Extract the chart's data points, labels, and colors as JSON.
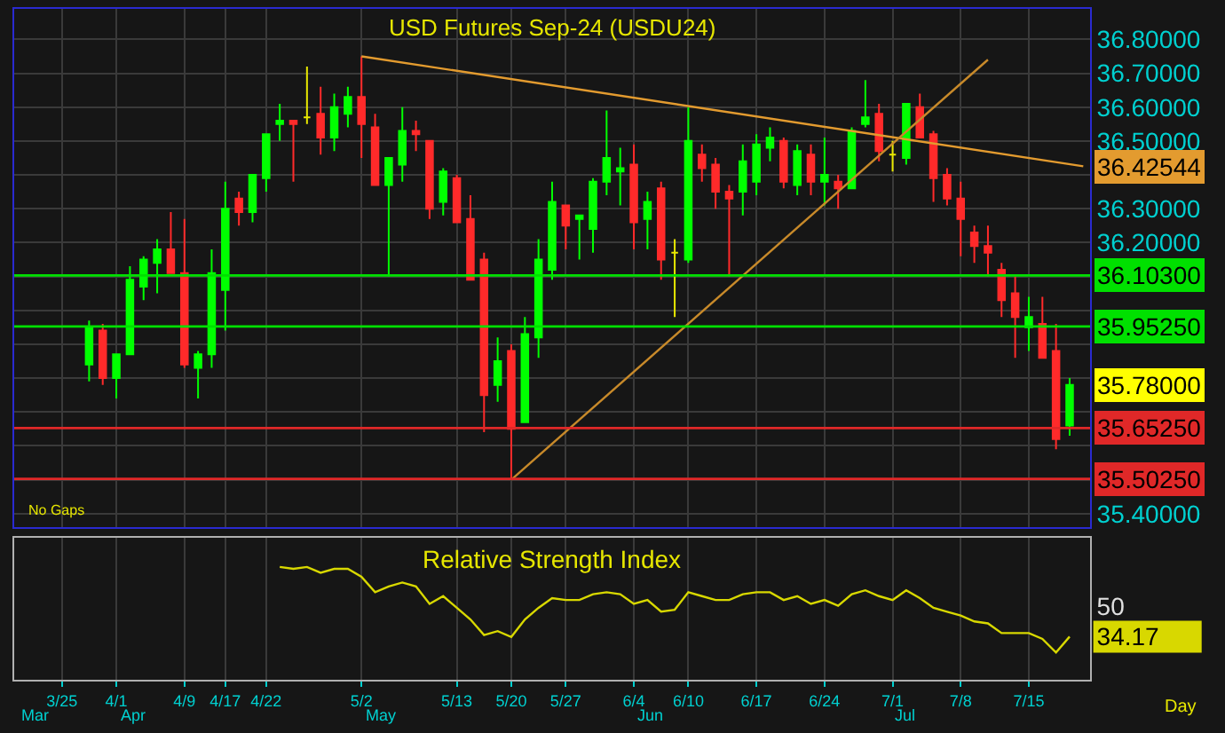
{
  "chart_data": [
    {
      "type": "candlestick",
      "title": "USD Futures Sep-24 (USDU24)",
      "categories": [
        null,
        null,
        null,
        null,
        null,
        null,
        null,
        null,
        null,
        null,
        null,
        null,
        null,
        null,
        null,
        null,
        null,
        null,
        null,
        null,
        null,
        null,
        null,
        null,
        null,
        null,
        null,
        null,
        null,
        null,
        null,
        null,
        null,
        null,
        null,
        null,
        null,
        null,
        null,
        null,
        null,
        null,
        null,
        null,
        null,
        null,
        null,
        null,
        null,
        null,
        null,
        null,
        null,
        null,
        null,
        null,
        null,
        null,
        null,
        null,
        null,
        null,
        null,
        null,
        null,
        null,
        null,
        null,
        null,
        null,
        null,
        null,
        null,
        null,
        null,
        null,
        null,
        null,
        null
      ],
      "ohlc": [
        null,
        null,
        null,
        null,
        null,
        [
          35.84,
          35.97,
          35.79,
          35.95
        ],
        [
          35.94,
          35.96,
          35.78,
          35.8
        ],
        [
          35.8,
          35.87,
          35.74,
          35.87
        ],
        [
          35.87,
          36.13,
          35.87,
          36.09
        ],
        [
          36.07,
          36.16,
          36.03,
          36.15
        ],
        [
          36.14,
          36.21,
          36.05,
          36.18
        ],
        [
          36.18,
          36.29,
          36.11,
          36.11
        ],
        [
          36.11,
          36.27,
          35.83,
          35.84
        ],
        [
          35.83,
          35.88,
          35.74,
          35.87
        ],
        [
          35.87,
          36.18,
          35.83,
          36.11
        ],
        [
          36.06,
          36.38,
          35.94,
          36.3
        ],
        [
          36.33,
          36.35,
          36.25,
          36.29
        ],
        [
          36.29,
          36.4,
          36.26,
          36.4
        ],
        [
          36.39,
          36.52,
          36.35,
          36.52
        ],
        [
          36.55,
          36.61,
          36.5,
          36.56
        ],
        [
          36.56,
          36.56,
          36.38,
          36.55
        ],
        [
          36.57,
          36.72,
          36.55,
          36.57
        ],
        [
          36.58,
          36.66,
          36.46,
          36.51
        ],
        [
          36.51,
          36.64,
          36.47,
          36.6
        ],
        [
          36.58,
          36.66,
          36.54,
          36.63
        ],
        [
          36.63,
          36.75,
          36.45,
          36.55
        ],
        [
          36.54,
          36.58,
          36.37,
          36.37
        ],
        [
          36.37,
          36.45,
          36.1,
          36.45
        ],
        [
          36.43,
          36.6,
          36.38,
          36.53
        ],
        [
          36.53,
          36.56,
          36.47,
          36.52
        ],
        [
          36.5,
          36.5,
          36.27,
          36.3
        ],
        [
          36.32,
          36.42,
          36.28,
          36.41
        ],
        [
          36.39,
          36.4,
          36.26,
          36.26
        ],
        [
          36.27,
          36.34,
          36.09,
          36.09
        ],
        [
          36.15,
          36.17,
          35.64,
          35.75
        ],
        [
          35.78,
          35.92,
          35.73,
          35.85
        ],
        [
          35.88,
          35.9,
          35.5,
          35.65
        ],
        [
          35.67,
          35.98,
          35.67,
          35.93
        ],
        [
          35.92,
          36.21,
          35.86,
          36.15
        ],
        [
          36.12,
          36.38,
          36.09,
          36.32
        ],
        [
          36.31,
          36.31,
          36.18,
          36.25
        ],
        [
          36.27,
          36.28,
          36.15,
          36.28
        ],
        [
          36.24,
          36.39,
          36.17,
          36.38
        ],
        [
          36.38,
          36.59,
          36.34,
          36.45
        ],
        [
          36.41,
          36.48,
          36.31,
          36.42
        ],
        [
          36.43,
          36.49,
          36.18,
          36.26
        ],
        [
          36.27,
          36.35,
          36.18,
          36.32
        ],
        [
          36.36,
          36.38,
          36.09,
          36.15
        ],
        [
          36.17,
          36.21,
          35.98,
          36.17
        ],
        [
          36.15,
          36.6,
          36.14,
          36.5
        ],
        [
          36.46,
          36.49,
          36.38,
          36.42
        ],
        [
          36.43,
          36.45,
          36.3,
          36.35
        ],
        [
          36.35,
          36.37,
          36.1,
          36.33
        ],
        [
          36.35,
          36.49,
          36.28,
          36.44
        ],
        [
          36.38,
          36.52,
          36.34,
          36.49
        ],
        [
          36.48,
          36.54,
          36.44,
          36.51
        ],
        [
          36.5,
          36.51,
          36.36,
          36.38
        ],
        [
          36.37,
          36.49,
          36.34,
          36.47
        ],
        [
          36.46,
          36.49,
          36.34,
          36.38
        ],
        [
          36.38,
          36.51,
          36.31,
          36.4
        ],
        [
          36.38,
          36.4,
          36.3,
          36.36
        ],
        [
          36.36,
          36.54,
          36.36,
          36.53
        ],
        [
          36.55,
          36.68,
          36.54,
          36.57
        ],
        [
          36.58,
          36.61,
          36.44,
          36.47
        ],
        [
          36.46,
          36.5,
          36.41,
          36.46
        ],
        [
          36.45,
          36.61,
          36.43,
          36.61
        ],
        [
          36.6,
          36.64,
          36.51,
          36.51
        ],
        [
          36.52,
          36.53,
          36.32,
          36.39
        ],
        [
          36.4,
          36.42,
          36.31,
          36.33
        ],
        [
          36.33,
          36.38,
          36.16,
          36.27
        ],
        [
          36.23,
          36.25,
          36.14,
          36.19
        ],
        [
          36.19,
          36.25,
          36.1,
          36.17
        ],
        [
          36.12,
          36.14,
          35.98,
          36.03
        ],
        [
          36.05,
          36.1,
          35.86,
          35.98
        ],
        [
          35.95,
          36.04,
          35.88,
          35.98
        ],
        [
          35.96,
          36.04,
          35.86,
          35.86
        ],
        [
          35.88,
          35.96,
          35.59,
          35.62
        ],
        [
          35.66,
          35.8,
          35.63,
          35.78
        ],
        null
      ],
      "colors": [
        null,
        null,
        null,
        null,
        null,
        "#00ff00",
        "#ff2a2a",
        "#00ff00",
        "#00ff00",
        "#00ff00",
        "#00ff00",
        "#ff2a2a",
        "#ff2a2a",
        "#00ff00",
        "#00ff00",
        "#00ff00",
        "#ff2a2a",
        "#00ff00",
        "#00ff00",
        "#00ff00",
        "#ff2a2a",
        "#e8e800",
        "#ff2a2a",
        "#00ff00",
        "#00ff00",
        "#ff2a2a",
        "#ff2a2a",
        "#00ff00",
        "#00ff00",
        "#ff2a2a",
        "#ff2a2a",
        "#00ff00",
        "#ff2a2a",
        "#ff2a2a",
        "#ff2a2a",
        "#00ff00",
        "#ff2a2a",
        "#00ff00",
        "#00ff00",
        "#00ff00",
        "#ff2a2a",
        "#00ff00",
        "#00ff00",
        "#00ff00",
        "#00ff00",
        "#ff2a2a",
        "#00ff00",
        "#ff2a2a",
        "#e8e800",
        "#00ff00",
        "#ff2a2a",
        "#ff2a2a",
        "#ff2a2a",
        "#00ff00",
        "#00ff00",
        "#00ff00",
        "#ff2a2a",
        "#00ff00",
        "#ff2a2a",
        "#00ff00",
        "#ff2a2a",
        "#00ff00",
        "#00ff00",
        "#ff2a2a",
        "#e8e800",
        "#00ff00",
        "#ff2a2a",
        "#ff2a2a",
        "#ff2a2a",
        "#ff2a2a",
        "#ff2a2a",
        "#ff2a2a",
        "#ff2a2a",
        "#ff2a2a",
        "#00ff00",
        "#ff2a2a",
        "#ff2a2a",
        "#00ff00",
        null
      ],
      "value_labels": [
        null,
        null,
        null,
        null,
        null,
        null,
        null,
        null,
        null,
        null,
        null,
        null,
        null,
        null,
        null,
        null,
        null,
        null,
        null,
        null,
        null,
        null,
        null,
        null,
        null,
        null,
        null,
        null,
        null,
        null,
        null,
        null,
        null,
        null,
        null,
        null,
        null,
        null,
        null,
        null,
        null,
        null,
        null,
        null,
        null,
        null,
        null,
        null,
        null,
        null,
        null,
        null,
        null,
        null,
        null,
        null,
        null,
        null,
        null,
        null,
        null,
        null,
        null,
        null,
        null,
        null,
        null,
        null,
        null,
        null,
        null,
        null,
        null,
        null,
        null,
        null,
        null,
        "35.78000",
        null
      ],
      "series": [
        {
          "type": "line",
          "color": "#e39b2f",
          "values": [
            null,
            null,
            null,
            null,
            null,
            null,
            null,
            null,
            null,
            null,
            null,
            null,
            null,
            null,
            null,
            null,
            null,
            null,
            null,
            null,
            null,
            null,
            null,
            null,
            null,
            36.75,
            null,
            null,
            null,
            null,
            null,
            null,
            null,
            null,
            null,
            null,
            null,
            null,
            null,
            null,
            null,
            null,
            null,
            null,
            null,
            null,
            null,
            null,
            null,
            null,
            null,
            null,
            null,
            null,
            null,
            null,
            null,
            null,
            null,
            null,
            null,
            null,
            null,
            null,
            null,
            null,
            null,
            null,
            null,
            null,
            null,
            null,
            null,
            null,
            null,
            null,
            null,
            null,
            36.42544
          ],
          "value_labels": [
            null,
            null,
            null,
            null,
            null,
            null,
            null,
            null,
            null,
            null,
            null,
            null,
            null,
            null,
            null,
            null,
            null,
            null,
            null,
            null,
            null,
            null,
            null,
            null,
            null,
            null,
            null,
            null,
            null,
            null,
            null,
            null,
            null,
            null,
            null,
            null,
            null,
            null,
            null,
            null,
            null,
            null,
            null,
            null,
            null,
            null,
            null,
            null,
            null,
            null,
            null,
            null,
            null,
            null,
            null,
            null,
            null,
            null,
            null,
            null,
            null,
            null,
            null,
            null,
            null,
            null,
            null,
            null,
            null,
            null,
            null,
            null,
            null,
            null,
            null,
            null,
            null,
            null,
            "36.42544"
          ]
        },
        {
          "type": "line",
          "color": "#c88a2a",
          "values": [
            null,
            null,
            null,
            null,
            null,
            null,
            null,
            null,
            null,
            null,
            null,
            null,
            null,
            null,
            null,
            null,
            null,
            null,
            null,
            null,
            null,
            null,
            null,
            null,
            null,
            null,
            null,
            null,
            null,
            null,
            null,
            null,
            null,
            null,
            null,
            null,
            35.5,
            null,
            null,
            null,
            null,
            null,
            null,
            null,
            null,
            null,
            null,
            null,
            null,
            null,
            null,
            null,
            null,
            null,
            null,
            null,
            null,
            null,
            null,
            null,
            null,
            null,
            null,
            null,
            null,
            null,
            null,
            null,
            null,
            null,
            null,
            36.74,
            null,
            null,
            null,
            null,
            null,
            null,
            null
          ]
        }
      ],
      "ylim": [
        35.36,
        36.89
      ],
      "yticks": [
        {
          "value": 36.8,
          "label": "36.80000"
        },
        {
          "value": 36.7,
          "label": "36.70000"
        },
        {
          "value": 36.6,
          "label": "36.60000"
        },
        {
          "value": 36.5,
          "label": "36.50000"
        },
        {
          "value": 36.4,
          "label": null
        },
        {
          "value": 36.3,
          "label": "36.30000"
        },
        {
          "value": 36.2,
          "label": "36.20000"
        },
        {
          "value": 36.1,
          "label": null
        },
        {
          "value": 36.0,
          "label": null
        },
        {
          "value": 35.9,
          "label": null
        },
        {
          "value": 35.8,
          "label": null
        },
        {
          "value": 35.7,
          "label": null
        },
        {
          "value": 35.6,
          "label": null
        },
        {
          "value": 35.5,
          "label": null
        },
        {
          "value": 35.4,
          "label": "35.40000"
        }
      ],
      "ref_lines": [
        {
          "axis": "y",
          "value": 36.103,
          "label": "36.10300",
          "color": "#00e000"
        },
        {
          "axis": "y",
          "value": 35.9525,
          "label": "35.95250",
          "color": "#00e000"
        },
        {
          "axis": "y",
          "value": 35.6525,
          "label": "35.65250",
          "color": "#e02828"
        },
        {
          "axis": "y",
          "value": 35.5025,
          "label": "35.50250",
          "color": "#e02828"
        }
      ],
      "annotations": [
        "No Gaps"
      ],
      "grid": true,
      "tick_labels": "y"
    },
    {
      "type": "line",
      "title": "Relative Strength Index",
      "categories": [
        null,
        null,
        null,
        "3/25",
        null,
        null,
        null,
        "4/1",
        null,
        null,
        null,
        null,
        "4/9",
        null,
        null,
        "4/17",
        null,
        null,
        "4/22",
        null,
        null,
        null,
        null,
        null,
        null,
        "5/2",
        null,
        null,
        null,
        null,
        null,
        null,
        "5/13",
        null,
        null,
        null,
        "5/20",
        null,
        null,
        null,
        "5/27",
        null,
        null,
        null,
        null,
        "6/4",
        null,
        null,
        null,
        "6/10",
        null,
        null,
        null,
        null,
        "6/17",
        null,
        null,
        null,
        null,
        "6/24",
        null,
        null,
        null,
        null,
        "7/1",
        null,
        null,
        null,
        null,
        "7/8",
        null,
        null,
        null,
        null,
        "7/15",
        null,
        null,
        null,
        null
      ],
      "series": [
        {
          "color": "#d8d800",
          "values": [
            null,
            null,
            null,
            null,
            null,
            null,
            null,
            null,
            null,
            null,
            null,
            null,
            null,
            null,
            null,
            null,
            null,
            null,
            null,
            70,
            69,
            70,
            67,
            69,
            69,
            65,
            57,
            60,
            62,
            60,
            51,
            55,
            49,
            43,
            35,
            37,
            34,
            43,
            49,
            54,
            53,
            53,
            56,
            57,
            56,
            51,
            53,
            47,
            48,
            57,
            55,
            53,
            53,
            56,
            57,
            57,
            53,
            55,
            51,
            53,
            50,
            56,
            58,
            55,
            53,
            58,
            54,
            49,
            47,
            45,
            42,
            41,
            36,
            36,
            36,
            33,
            26,
            34.17,
            null
          ]
        }
      ],
      "ylim": [
        12,
        85
      ],
      "yticks": [
        50,
        {
          "value": 34.17,
          "label": "34.17"
        }
      ],
      "annotations": [
        "Day",
        "Mar",
        "Apr",
        "May",
        "Jun",
        "Jul"
      ],
      "grid": "x"
    }
  ]
}
